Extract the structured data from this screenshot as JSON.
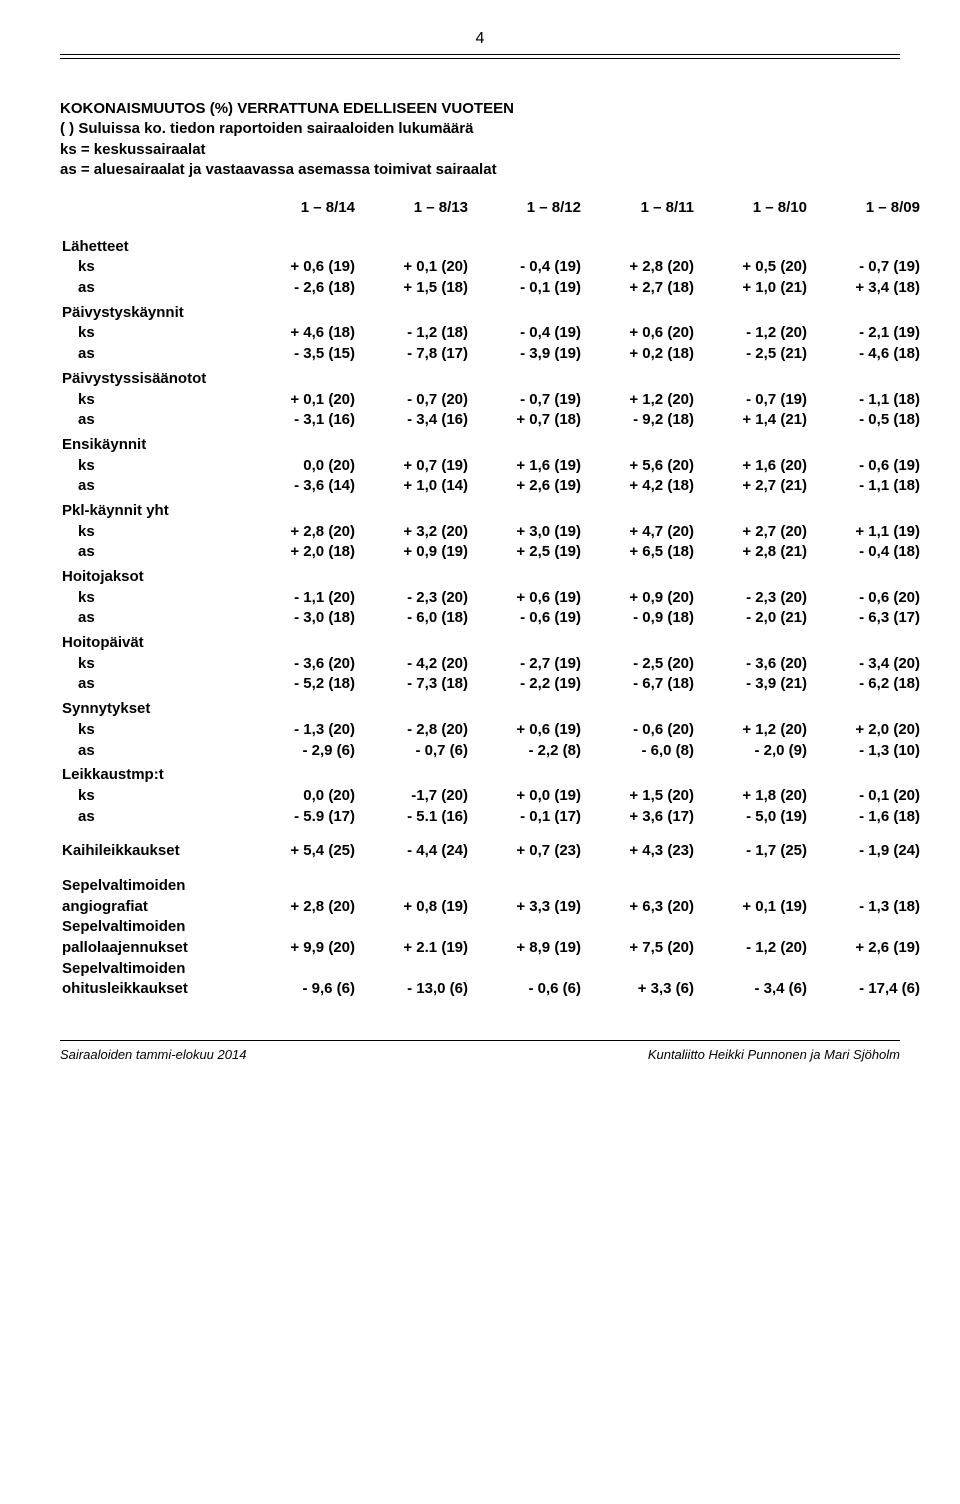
{
  "page_number": "4",
  "header": {
    "line1": "KOKONAISMUUTOS (%) VERRATTUNA EDELLISEEN VUOTEEN",
    "line2": "( ) Suluissa ko. tiedon raportoiden sairaaloiden lukumäärä",
    "line3": "ks = keskussairaalat",
    "line4": "as = aluesairaalat ja vastaavassa asemassa toimivat sairaalat"
  },
  "periods": [
    "1 – 8/14",
    "1 – 8/13",
    "1 – 8/12",
    "1 – 8/11",
    "1 – 8/10",
    "1 – 8/09"
  ],
  "groups": [
    {
      "title": "Lähetteet",
      "rows": [
        {
          "label": "ks",
          "cells": [
            "+ 0,6 (19)",
            "+ 0,1 (20)",
            "- 0,4 (19)",
            "+ 2,8 (20)",
            "+ 0,5 (20)",
            "- 0,7 (19)"
          ]
        },
        {
          "label": "as",
          "cells": [
            "- 2,6 (18)",
            "+ 1,5 (18)",
            "- 0,1 (19)",
            "+ 2,7 (18)",
            "+ 1,0 (21)",
            "+ 3,4 (18)"
          ]
        }
      ]
    },
    {
      "title": "Päivystyskäynnit",
      "rows": [
        {
          "label": "ks",
          "cells": [
            "+ 4,6 (18)",
            "- 1,2 (18)",
            "- 0,4 (19)",
            "+ 0,6 (20)",
            "- 1,2 (20)",
            "- 2,1 (19)"
          ]
        },
        {
          "label": "as",
          "cells": [
            "- 3,5 (15)",
            "- 7,8 (17)",
            "- 3,9 (19)",
            "+ 0,2 (18)",
            "- 2,5 (21)",
            "- 4,6 (18)"
          ]
        }
      ]
    },
    {
      "title": "Päivystyssisäänotot",
      "rows": [
        {
          "label": "ks",
          "cells": [
            "+ 0,1 (20)",
            "- 0,7 (20)",
            "- 0,7 (19)",
            "+ 1,2 (20)",
            "- 0,7 (19)",
            "- 1,1 (18)"
          ]
        },
        {
          "label": "as",
          "cells": [
            "- 3,1 (16)",
            "- 3,4 (16)",
            "+ 0,7 (18)",
            "- 9,2 (18)",
            "+ 1,4 (21)",
            "- 0,5 (18)"
          ]
        }
      ]
    },
    {
      "title": "Ensikäynnit",
      "rows": [
        {
          "label": "ks",
          "cells": [
            "0,0 (20)",
            "+ 0,7 (19)",
            "+ 1,6 (19)",
            "+ 5,6 (20)",
            "+ 1,6 (20)",
            "- 0,6 (19)"
          ]
        },
        {
          "label": "as",
          "cells": [
            "- 3,6 (14)",
            "+ 1,0 (14)",
            "+ 2,6 (19)",
            "+ 4,2 (18)",
            "+ 2,7 (21)",
            "- 1,1 (18)"
          ]
        }
      ]
    },
    {
      "title": "Pkl-käynnit yht",
      "rows": [
        {
          "label": "ks",
          "cells": [
            "+ 2,8 (20)",
            "+ 3,2 (20)",
            "+ 3,0 (19)",
            "+ 4,7 (20)",
            "+ 2,7 (20)",
            "+ 1,1 (19)"
          ]
        },
        {
          "label": "as",
          "cells": [
            "+ 2,0 (18)",
            "+ 0,9 (19)",
            "+ 2,5 (19)",
            "+ 6,5 (18)",
            "+ 2,8 (21)",
            "- 0,4 (18)"
          ]
        }
      ]
    },
    {
      "title": "Hoitojaksot",
      "rows": [
        {
          "label": "ks",
          "cells": [
            "- 1,1 (20)",
            "- 2,3 (20)",
            "+ 0,6 (19)",
            "+ 0,9 (20)",
            "- 2,3 (20)",
            "- 0,6 (20)"
          ]
        },
        {
          "label": "as",
          "cells": [
            "- 3,0 (18)",
            "- 6,0 (18)",
            "- 0,6 (19)",
            "- 0,9 (18)",
            "- 2,0 (21)",
            "- 6,3 (17)"
          ]
        }
      ]
    },
    {
      "title": "Hoitopäivät",
      "rows": [
        {
          "label": "ks",
          "cells": [
            "- 3,6 (20)",
            "- 4,2 (20)",
            "- 2,7 (19)",
            "- 2,5 (20)",
            "- 3,6 (20)",
            "- 3,4 (20)"
          ]
        },
        {
          "label": "as",
          "cells": [
            "- 5,2 (18)",
            "- 7,3 (18)",
            "- 2,2 (19)",
            "- 6,7 (18)",
            "- 3,9 (21)",
            "- 6,2 (18)"
          ]
        }
      ]
    },
    {
      "title": "Synnytykset",
      "rows": [
        {
          "label": "ks",
          "cells": [
            "- 1,3 (20)",
            "- 2,8 (20)",
            "+ 0,6 (19)",
            "- 0,6 (20)",
            "+ 1,2 (20)",
            "+ 2,0 (20)"
          ]
        },
        {
          "label": "as",
          "cells": [
            "- 2,9 (6)",
            "- 0,7 (6)",
            "- 2,2 (8)",
            "- 6,0 (8)",
            "- 2,0 (9)",
            "- 1,3 (10)"
          ]
        }
      ]
    },
    {
      "title": "Leikkaustmp:t",
      "rows": [
        {
          "label": "ks",
          "cells": [
            "0,0 (20)",
            "-1,7 (20)",
            "+ 0,0 (19)",
            "+ 1,5 (20)",
            "+ 1,8 (20)",
            "- 0,1 (20)"
          ]
        },
        {
          "label": "as",
          "cells": [
            "- 5.9 (17)",
            "- 5.1 (16)",
            "- 0,1 (17)",
            "+ 3,6 (17)",
            "- 5,0 (19)",
            "- 1,6 (18)"
          ]
        }
      ]
    }
  ],
  "singles_block1": [
    {
      "label": "Kaihileikkaukset",
      "cells": [
        "+ 5,4 (25)",
        "- 4,4 (24)",
        "+ 0,7 (23)",
        "+ 4,3 (23)",
        "- 1,7 (25)",
        "- 1,9 (24)"
      ]
    }
  ],
  "singles_block2": [
    {
      "label_lines": [
        "Sepelvaltimoiden",
        "angiografiat"
      ],
      "cells": [
        "+ 2,8 (20)",
        "+ 0,8 (19)",
        "+ 3,3 (19)",
        "+ 6,3 (20)",
        "+ 0,1 (19)",
        "- 1,3 (18)"
      ]
    },
    {
      "label_lines": [
        "Sepelvaltimoiden",
        "pallolaajennukset"
      ],
      "cells": [
        "+ 9,9 (20)",
        "+ 2.1 (19)",
        "+ 8,9 (19)",
        "+ 7,5 (20)",
        "- 1,2 (20)",
        "+ 2,6 (19)"
      ]
    },
    {
      "label_lines": [
        "Sepelvaltimoiden",
        "ohitusleikkaukset"
      ],
      "cells": [
        "- 9,6 (6)",
        "- 13,0 (6)",
        "- 0,6 (6)",
        "+ 3,3 (6)",
        "- 3,4 (6)",
        "- 17,4 (6)"
      ]
    }
  ],
  "footer": {
    "left": "Sairaaloiden tammi-elokuu 2014",
    "right": "Kuntaliitto  Heikki Punnonen ja Mari Sjöholm"
  }
}
